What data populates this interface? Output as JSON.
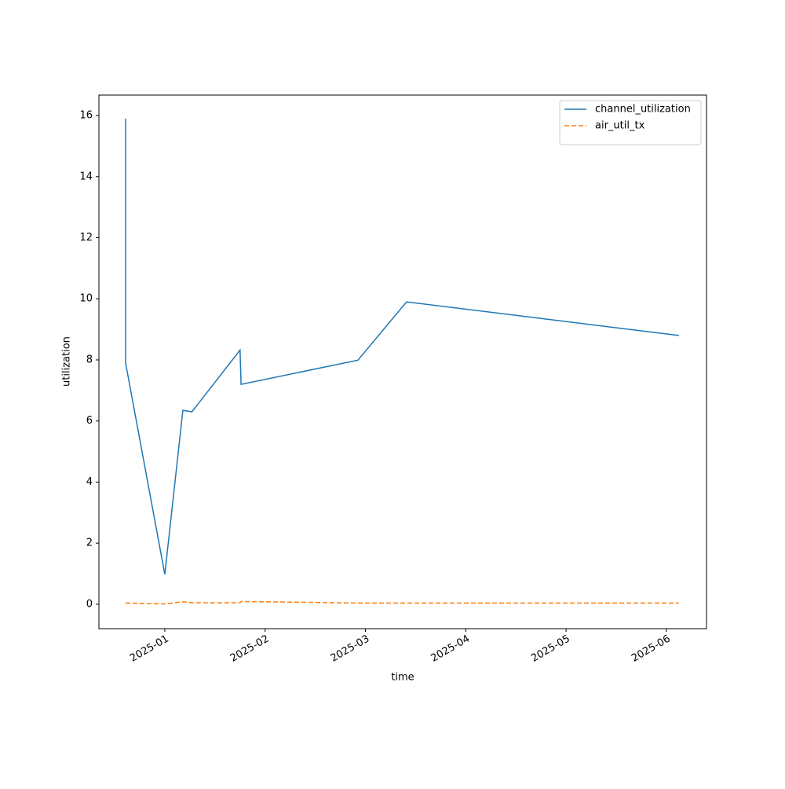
{
  "chart_data": {
    "type": "line",
    "x_label": "time",
    "y_label": "utilization",
    "x": [
      0.609,
      0.609,
      1.0,
      1.18,
      1.27,
      1.75,
      1.76,
      2.925,
      3.41,
      6.125
    ],
    "series": [
      {
        "name": "channel_utilization",
        "color": "#1f77b4",
        "linestyle": "solid",
        "values": [
          15.9,
          7.9,
          0.98,
          6.35,
          6.3,
          8.32,
          7.2,
          7.99,
          9.9,
          8.8
        ]
      },
      {
        "name": "air_util_tx",
        "color": "#ff7f0e",
        "linestyle": "dashed",
        "values": [
          0.04,
          0.04,
          0.01,
          0.08,
          0.05,
          0.05,
          0.09,
          0.04,
          0.04,
          0.04
        ]
      }
    ],
    "xlim": [
      0.343,
      6.4
    ],
    "xticks": [
      {
        "value": 1,
        "label": "2025-01"
      },
      {
        "value": 2,
        "label": "2025-02"
      },
      {
        "value": 3,
        "label": "2025-03"
      },
      {
        "value": 4,
        "label": "2025-04"
      },
      {
        "value": 5,
        "label": "2025-05"
      },
      {
        "value": 6,
        "label": "2025-06"
      }
    ],
    "ylim": [
      -0.8,
      16.67
    ],
    "yticks": [
      0,
      2,
      4,
      6,
      8,
      10,
      12,
      14,
      16
    ],
    "grid": false,
    "legend": "upper right"
  }
}
